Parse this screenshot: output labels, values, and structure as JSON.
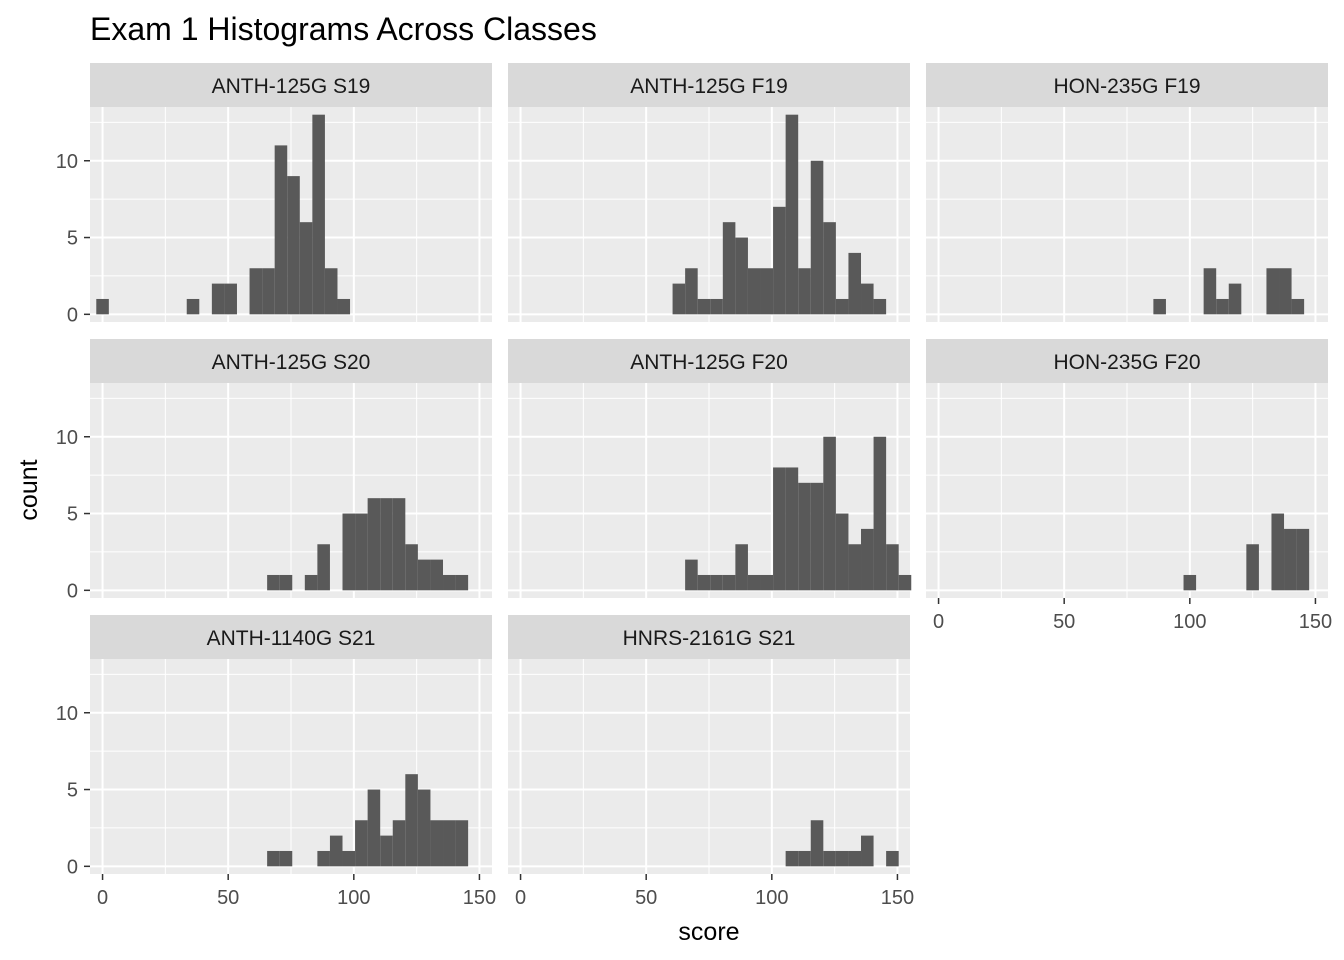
{
  "colors": {
    "panel_background": "#EBEBEB",
    "strip_background": "#D9D9D9",
    "grid_line": "#FFFFFF",
    "bar_fill": "#595959",
    "tick_text": "#4D4D4D",
    "title_text": "#000000"
  },
  "chart_data": {
    "type": "bar",
    "subtype": "faceted histogram",
    "title": "Exam 1 Histograms Across Classes",
    "xlabel": "score",
    "ylabel": "count",
    "xlim": [
      -5,
      155
    ],
    "ylim": [
      -0.5,
      13.5
    ],
    "x_ticks": [
      0,
      50,
      100,
      150
    ],
    "y_ticks": [
      0,
      5,
      10
    ],
    "x_tick_labels": [
      "0",
      "50",
      "100",
      "150"
    ],
    "y_tick_labels": [
      "0",
      "5",
      "10"
    ],
    "bin_width": 5,
    "grid": true,
    "facet_layout": {
      "columns": 3,
      "rows": 3
    },
    "facets": [
      {
        "label": "ANTH-125G S19",
        "bins": [
          {
            "x": 0,
            "count": 1
          },
          {
            "x": 36,
            "count": 1
          },
          {
            "x": 46,
            "count": 2
          },
          {
            "x": 51,
            "count": 2
          },
          {
            "x": 61,
            "count": 3
          },
          {
            "x": 66,
            "count": 3
          },
          {
            "x": 71,
            "count": 11
          },
          {
            "x": 76,
            "count": 9
          },
          {
            "x": 81,
            "count": 6
          },
          {
            "x": 86,
            "count": 13
          },
          {
            "x": 91,
            "count": 3
          },
          {
            "x": 96,
            "count": 1
          }
        ]
      },
      {
        "label": "ANTH-125G F19",
        "bins": [
          {
            "x": 63,
            "count": 2
          },
          {
            "x": 68,
            "count": 3
          },
          {
            "x": 73,
            "count": 1
          },
          {
            "x": 78,
            "count": 1
          },
          {
            "x": 83,
            "count": 6
          },
          {
            "x": 88,
            "count": 5
          },
          {
            "x": 93,
            "count": 3
          },
          {
            "x": 98,
            "count": 3
          },
          {
            "x": 103,
            "count": 7
          },
          {
            "x": 108,
            "count": 13
          },
          {
            "x": 113,
            "count": 3
          },
          {
            "x": 118,
            "count": 10
          },
          {
            "x": 123,
            "count": 6
          },
          {
            "x": 128,
            "count": 1
          },
          {
            "x": 133,
            "count": 4
          },
          {
            "x": 138,
            "count": 2
          },
          {
            "x": 143,
            "count": 1
          }
        ]
      },
      {
        "label": "HON-235G F19",
        "bins": [
          {
            "x": 88,
            "count": 1
          },
          {
            "x": 108,
            "count": 3
          },
          {
            "x": 113,
            "count": 1
          },
          {
            "x": 118,
            "count": 2
          },
          {
            "x": 133,
            "count": 3
          },
          {
            "x": 138,
            "count": 3
          },
          {
            "x": 143,
            "count": 1
          }
        ]
      },
      {
        "label": "ANTH-125G S20",
        "bins": [
          {
            "x": 68,
            "count": 1
          },
          {
            "x": 73,
            "count": 1
          },
          {
            "x": 83,
            "count": 1
          },
          {
            "x": 88,
            "count": 3
          },
          {
            "x": 98,
            "count": 5
          },
          {
            "x": 103,
            "count": 5
          },
          {
            "x": 108,
            "count": 6
          },
          {
            "x": 113,
            "count": 6
          },
          {
            "x": 118,
            "count": 6
          },
          {
            "x": 123,
            "count": 3
          },
          {
            "x": 128,
            "count": 2
          },
          {
            "x": 133,
            "count": 2
          },
          {
            "x": 138,
            "count": 1
          },
          {
            "x": 143,
            "count": 1
          }
        ]
      },
      {
        "label": "ANTH-125G F20",
        "bins": [
          {
            "x": 68,
            "count": 2
          },
          {
            "x": 73,
            "count": 1
          },
          {
            "x": 78,
            "count": 1
          },
          {
            "x": 83,
            "count": 1
          },
          {
            "x": 88,
            "count": 3
          },
          {
            "x": 93,
            "count": 1
          },
          {
            "x": 98,
            "count": 1
          },
          {
            "x": 103,
            "count": 8
          },
          {
            "x": 108,
            "count": 8
          },
          {
            "x": 113,
            "count": 7
          },
          {
            "x": 118,
            "count": 7
          },
          {
            "x": 123,
            "count": 10
          },
          {
            "x": 128,
            "count": 5
          },
          {
            "x": 133,
            "count": 3
          },
          {
            "x": 138,
            "count": 4
          },
          {
            "x": 143,
            "count": 10
          },
          {
            "x": 148,
            "count": 3
          },
          {
            "x": 153,
            "count": 1
          }
        ]
      },
      {
        "label": "HON-235G F20",
        "bins": [
          {
            "x": 100,
            "count": 1
          },
          {
            "x": 125,
            "count": 3
          },
          {
            "x": 135,
            "count": 5
          },
          {
            "x": 140,
            "count": 4
          },
          {
            "x": 145,
            "count": 4
          }
        ]
      },
      {
        "label": "ANTH-1140G S21",
        "bins": [
          {
            "x": 68,
            "count": 1
          },
          {
            "x": 73,
            "count": 1
          },
          {
            "x": 88,
            "count": 1
          },
          {
            "x": 93,
            "count": 2
          },
          {
            "x": 98,
            "count": 1
          },
          {
            "x": 103,
            "count": 3
          },
          {
            "x": 108,
            "count": 5
          },
          {
            "x": 113,
            "count": 2
          },
          {
            "x": 118,
            "count": 3
          },
          {
            "x": 123,
            "count": 6
          },
          {
            "x": 128,
            "count": 5
          },
          {
            "x": 133,
            "count": 3
          },
          {
            "x": 138,
            "count": 3
          },
          {
            "x": 143,
            "count": 3
          }
        ]
      },
      {
        "label": "HNRS-2161G S21",
        "bins": [
          {
            "x": 108,
            "count": 1
          },
          {
            "x": 113,
            "count": 1
          },
          {
            "x": 118,
            "count": 3
          },
          {
            "x": 123,
            "count": 1
          },
          {
            "x": 128,
            "count": 1
          },
          {
            "x": 133,
            "count": 1
          },
          {
            "x": 138,
            "count": 2
          },
          {
            "x": 148,
            "count": 1
          }
        ]
      }
    ]
  }
}
